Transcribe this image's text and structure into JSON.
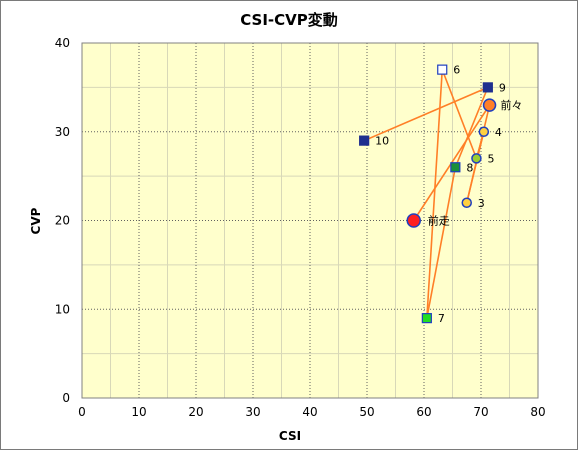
{
  "chart_data": {
    "type": "scatter",
    "title": "CSI-CVP変動",
    "xlabel": "CSI",
    "ylabel": "CVP",
    "xlim": [
      0,
      80
    ],
    "ylim": [
      0,
      40
    ],
    "x_ticks": [
      0,
      10,
      20,
      30,
      40,
      50,
      60,
      70,
      80
    ],
    "y_ticks": [
      0,
      10,
      20,
      30,
      40
    ],
    "grid": true,
    "plot_background": "#ffffcc",
    "line_color": "#ff7f27",
    "path_order": [
      "前走",
      "前々",
      "3",
      "4",
      "5",
      "6",
      "7",
      "8",
      "9",
      "10"
    ],
    "points": [
      {
        "label": "前走",
        "x": 58.2,
        "y": 20.0,
        "marker": "circle-large",
        "fill": "#ff2020",
        "stroke": "#1f3fbf"
      },
      {
        "label": "前々",
        "x": 71.5,
        "y": 33.0,
        "marker": "circle",
        "fill": "#ff7f27",
        "stroke": "#1f3fbf"
      },
      {
        "label": "3",
        "x": 67.5,
        "y": 22.0,
        "marker": "circle-small",
        "fill": "#ffd040",
        "stroke": "#1f3fbf"
      },
      {
        "label": "4",
        "x": 70.5,
        "y": 30.0,
        "marker": "circle-small",
        "fill": "#ffd040",
        "stroke": "#1f3fbf"
      },
      {
        "label": "5",
        "x": 69.2,
        "y": 27.0,
        "marker": "circle-small",
        "fill": "#9acd32",
        "stroke": "#1f3fbf"
      },
      {
        "label": "6",
        "x": 63.2,
        "y": 37.0,
        "marker": "square",
        "fill": "#ffffff",
        "stroke": "#1f3fbf"
      },
      {
        "label": "7",
        "x": 60.5,
        "y": 9.0,
        "marker": "square",
        "fill": "#22dd22",
        "stroke": "#1f3fbf"
      },
      {
        "label": "8",
        "x": 65.5,
        "y": 26.0,
        "marker": "square",
        "fill": "#1a8f3a",
        "stroke": "#1f3fbf"
      },
      {
        "label": "9",
        "x": 71.2,
        "y": 35.0,
        "marker": "square",
        "fill": "#1f2f8f",
        "stroke": "#1f2f8f"
      },
      {
        "label": "10",
        "x": 49.5,
        "y": 29.0,
        "marker": "square",
        "fill": "#1f2f8f",
        "stroke": "#1f2f8f"
      }
    ]
  }
}
